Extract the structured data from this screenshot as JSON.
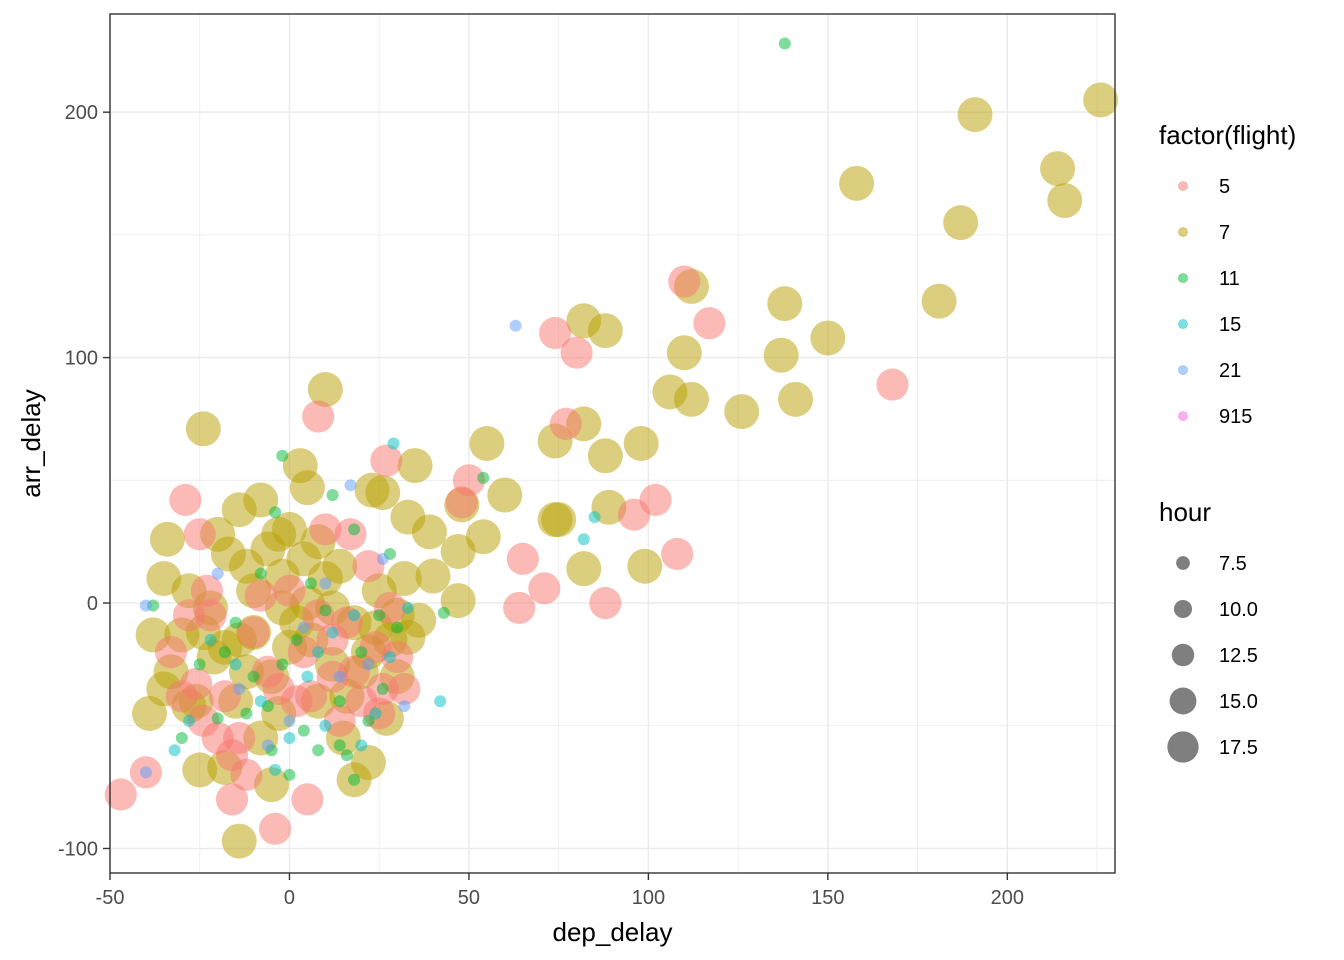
{
  "chart_data": {
    "type": "scatter",
    "title": "",
    "xlabel": "dep_delay",
    "ylabel": "arr_delay",
    "xlim": [
      -50,
      230
    ],
    "ylim": [
      -110,
      240
    ],
    "x_ticks": [
      -50,
      0,
      50,
      100,
      150,
      200
    ],
    "x_tick_labels": [
      "-50",
      "0",
      "50",
      "100",
      "150",
      "200"
    ],
    "y_ticks": [
      -100,
      0,
      100,
      200
    ],
    "y_tick_labels": [
      "-100",
      "0",
      "100",
      "200"
    ],
    "grid": true,
    "color_legend": {
      "title": "factor(flight)",
      "entries": [
        {
          "label": "5",
          "color": "#F8766D"
        },
        {
          "label": "7",
          "color": "#B79F00"
        },
        {
          "label": "11",
          "color": "#00BA38"
        },
        {
          "label": "15",
          "color": "#00BFC4"
        },
        {
          "label": "21",
          "color": "#619CFF"
        },
        {
          "label": "915",
          "color": "#F564E3"
        }
      ]
    },
    "size_legend": {
      "title": "hour",
      "entries": [
        {
          "label": "7.5",
          "value": 7.5
        },
        {
          "label": "10.0",
          "value": 10.0
        },
        {
          "label": "12.5",
          "value": 12.5
        },
        {
          "label": "15.0",
          "value": 15.0
        },
        {
          "label": "17.5",
          "value": 17.5
        }
      ]
    },
    "series": [
      {
        "name": "7",
        "color": "#B79F00",
        "hour": 18,
        "points": [
          [
            226,
            205
          ],
          [
            191,
            199
          ],
          [
            158,
            171
          ],
          [
            214,
            177
          ],
          [
            216,
            164
          ],
          [
            187,
            155
          ],
          [
            181,
            123
          ],
          [
            138,
            122
          ],
          [
            137,
            101
          ],
          [
            150,
            108
          ],
          [
            141,
            83
          ],
          [
            126,
            78
          ],
          [
            110,
            102
          ],
          [
            112,
            129
          ],
          [
            112,
            83
          ],
          [
            106,
            86
          ],
          [
            82,
            115
          ],
          [
            88,
            111
          ],
          [
            82,
            73
          ],
          [
            74,
            66
          ],
          [
            98,
            65
          ],
          [
            88,
            60
          ],
          [
            74,
            34
          ],
          [
            75,
            34
          ],
          [
            89,
            39
          ],
          [
            82,
            14
          ],
          [
            99,
            15
          ],
          [
            55,
            65
          ],
          [
            60,
            44
          ],
          [
            48,
            40
          ],
          [
            54,
            27
          ],
          [
            47,
            21
          ],
          [
            47,
            1
          ],
          [
            39,
            29
          ],
          [
            40,
            11
          ],
          [
            36,
            -7
          ],
          [
            32,
            10
          ],
          [
            33,
            35
          ],
          [
            35,
            56
          ],
          [
            26,
            45
          ],
          [
            23,
            46
          ],
          [
            10,
            87
          ],
          [
            3,
            56
          ],
          [
            5,
            47
          ],
          [
            -24,
            71
          ],
          [
            -8,
            42
          ],
          [
            -14,
            38
          ],
          [
            -3,
            28
          ],
          [
            -34,
            26
          ],
          [
            -20,
            28
          ],
          [
            -17,
            20
          ],
          [
            -12,
            15
          ],
          [
            -14,
            -15
          ],
          [
            -38,
            -13
          ],
          [
            -33,
            -28
          ],
          [
            -35,
            -35
          ],
          [
            -39,
            -45
          ],
          [
            -26,
            -40
          ],
          [
            -25,
            -68
          ],
          [
            -18,
            -67
          ],
          [
            -24,
            -12
          ],
          [
            -21,
            -22
          ],
          [
            -5,
            -74
          ],
          [
            -14,
            -97
          ],
          [
            18,
            -72
          ],
          [
            22,
            -65
          ],
          [
            27,
            -47
          ],
          [
            18,
            -8
          ],
          [
            14,
            15
          ],
          [
            8,
            25
          ],
          [
            12,
            -2
          ],
          [
            -2,
            11
          ],
          [
            2,
            -8
          ],
          [
            5,
            0
          ],
          [
            -10,
            5
          ],
          [
            -5,
            -30
          ],
          [
            8,
            -40
          ],
          [
            15,
            -55
          ],
          [
            28,
            -15
          ],
          [
            33,
            -14
          ],
          [
            30,
            -30
          ],
          [
            -30,
            -13
          ],
          [
            -28,
            5
          ],
          [
            -8,
            -55
          ],
          [
            0,
            -18
          ],
          [
            -18,
            -18
          ],
          [
            20,
            -28
          ],
          [
            25,
            5
          ],
          [
            -3,
            -45
          ],
          [
            10,
            10
          ],
          [
            -35,
            10
          ],
          [
            -15,
            -40
          ],
          [
            6,
            -15
          ],
          [
            22,
            -20
          ],
          [
            -22,
            -2
          ],
          [
            -10,
            -12
          ],
          [
            16,
            -38
          ],
          [
            -6,
            22
          ],
          [
            0,
            30
          ],
          [
            30,
            -5
          ],
          [
            -28,
            -42
          ],
          [
            12,
            -25
          ],
          [
            -12,
            -28
          ],
          [
            24,
            -10
          ],
          [
            4,
            18
          ],
          [
            -2,
            -2
          ]
        ]
      },
      {
        "name": "5",
        "color": "#F8766D",
        "hour": 16.5,
        "points": [
          [
            110,
            131
          ],
          [
            117,
            114
          ],
          [
            74,
            110
          ],
          [
            80,
            102
          ],
          [
            168,
            89
          ],
          [
            77,
            73
          ],
          [
            102,
            42
          ],
          [
            96,
            36
          ],
          [
            108,
            20
          ],
          [
            65,
            18
          ],
          [
            71,
            6
          ],
          [
            64,
            -2
          ],
          [
            88,
            0
          ],
          [
            50,
            50
          ],
          [
            48,
            41
          ],
          [
            27,
            58
          ],
          [
            8,
            76
          ],
          [
            -29,
            42
          ],
          [
            -25,
            28
          ],
          [
            -28,
            -5
          ],
          [
            -23,
            5
          ],
          [
            -30,
            -38
          ],
          [
            -20,
            -55
          ],
          [
            -40,
            -69
          ],
          [
            -47,
            -78
          ],
          [
            -16,
            -80
          ],
          [
            -12,
            -70
          ],
          [
            -4,
            -92
          ],
          [
            5,
            -80
          ],
          [
            20,
            -40
          ],
          [
            25,
            -45
          ],
          [
            32,
            -35
          ],
          [
            30,
            -22
          ],
          [
            17,
            28
          ],
          [
            22,
            15
          ],
          [
            12,
            -15
          ],
          [
            2,
            -40
          ],
          [
            -6,
            -28
          ],
          [
            -18,
            -38
          ],
          [
            -26,
            -33
          ],
          [
            28,
            -2
          ],
          [
            14,
            -48
          ],
          [
            0,
            5
          ],
          [
            -10,
            -12
          ],
          [
            8,
            -5
          ],
          [
            -3,
            -35
          ],
          [
            18,
            -28
          ],
          [
            24,
            -18
          ],
          [
            -14,
            -55
          ],
          [
            4,
            -20
          ],
          [
            -33,
            -20
          ],
          [
            -22,
            -5
          ],
          [
            10,
            30
          ],
          [
            16,
            -8
          ],
          [
            -8,
            3
          ],
          [
            -16,
            -62
          ],
          [
            26,
            -35
          ],
          [
            6,
            -38
          ],
          [
            -24,
            -48
          ],
          [
            12,
            -30
          ]
        ]
      },
      {
        "name": "11",
        "color": "#00BA38",
        "hour": 6,
        "points": [
          [
            138,
            228
          ],
          [
            54,
            51
          ],
          [
            43,
            -4
          ],
          [
            -2,
            60
          ],
          [
            -4,
            37
          ],
          [
            -38,
            -1
          ],
          [
            -30,
            -55
          ],
          [
            -20,
            -47
          ],
          [
            -12,
            -45
          ],
          [
            -5,
            -60
          ],
          [
            0,
            -70
          ],
          [
            8,
            -60
          ],
          [
            14,
            -40
          ],
          [
            20,
            -20
          ],
          [
            25,
            -5
          ],
          [
            28,
            20
          ],
          [
            18,
            30
          ],
          [
            12,
            44
          ],
          [
            6,
            8
          ],
          [
            -2,
            -25
          ],
          [
            -10,
            -30
          ],
          [
            -15,
            -8
          ],
          [
            22,
            -48
          ],
          [
            26,
            -35
          ],
          [
            16,
            -62
          ],
          [
            -6,
            -42
          ],
          [
            2,
            -15
          ],
          [
            10,
            -3
          ],
          [
            -25,
            -25
          ],
          [
            30,
            -10
          ],
          [
            -18,
            -20
          ],
          [
            4,
            -52
          ],
          [
            18,
            -72
          ],
          [
            -8,
            12
          ],
          [
            14,
            -58
          ]
        ]
      },
      {
        "name": "15",
        "color": "#00BFC4",
        "hour": 6,
        "points": [
          [
            29,
            65
          ],
          [
            85,
            35
          ],
          [
            82,
            26
          ],
          [
            42,
            -40
          ],
          [
            -32,
            -60
          ],
          [
            20,
            -58
          ],
          [
            28,
            -22
          ],
          [
            10,
            -50
          ],
          [
            0,
            -55
          ],
          [
            -8,
            -40
          ],
          [
            -15,
            -25
          ],
          [
            -22,
            -15
          ],
          [
            5,
            -30
          ],
          [
            12,
            -12
          ],
          [
            18,
            -5
          ],
          [
            24,
            -45
          ],
          [
            -4,
            -68
          ],
          [
            -28,
            -48
          ],
          [
            33,
            -2
          ],
          [
            8,
            -20
          ]
        ]
      },
      {
        "name": "21",
        "color": "#619CFF",
        "hour": 6,
        "points": [
          [
            63,
            113
          ],
          [
            -40,
            -69
          ],
          [
            -40,
            -1
          ],
          [
            17,
            48
          ],
          [
            32,
            -42
          ],
          [
            -6,
            -58
          ],
          [
            4,
            -10
          ],
          [
            14,
            -30
          ],
          [
            22,
            -25
          ],
          [
            -14,
            -35
          ],
          [
            10,
            8
          ],
          [
            -20,
            12
          ],
          [
            26,
            18
          ],
          [
            0,
            -48
          ]
        ]
      },
      {
        "name": "915",
        "color": "#F564E3",
        "hour": 6,
        "points": []
      }
    ]
  }
}
